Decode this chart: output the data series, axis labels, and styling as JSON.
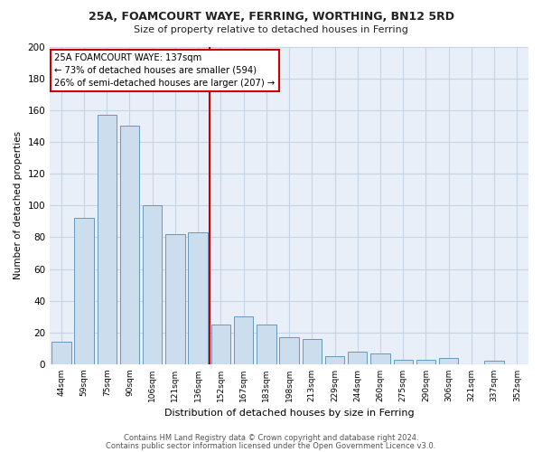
{
  "title1": "25A, FOAMCOURT WAYE, FERRING, WORTHING, BN12 5RD",
  "title2": "Size of property relative to detached houses in Ferring",
  "xlabel": "Distribution of detached houses by size in Ferring",
  "ylabel": "Number of detached properties",
  "categories": [
    "44sqm",
    "59sqm",
    "75sqm",
    "90sqm",
    "106sqm",
    "121sqm",
    "136sqm",
    "152sqm",
    "167sqm",
    "183sqm",
    "198sqm",
    "213sqm",
    "229sqm",
    "244sqm",
    "260sqm",
    "275sqm",
    "290sqm",
    "306sqm",
    "321sqm",
    "337sqm",
    "352sqm"
  ],
  "values": [
    14,
    92,
    157,
    150,
    100,
    82,
    83,
    25,
    30,
    25,
    17,
    16,
    5,
    8,
    7,
    3,
    3,
    4,
    0,
    2,
    0
  ],
  "bar_color": "#ccdded",
  "bar_edge_color": "#6699bb",
  "grid_color": "#c8d4e4",
  "background_color": "#e8eff8",
  "vline_x": 6.5,
  "vline_color": "#cc0000",
  "annotation_line1": "25A FOAMCOURT WAYE: 137sqm",
  "annotation_line2": "← 73% of detached houses are smaller (594)",
  "annotation_line3": "26% of semi-detached houses are larger (207) →",
  "annotation_box_color": "#ffffff",
  "annotation_box_edge": "#cc0000",
  "footer1": "Contains HM Land Registry data © Crown copyright and database right 2024.",
  "footer2": "Contains public sector information licensed under the Open Government Licence v3.0.",
  "ylim": [
    0,
    200
  ],
  "yticks": [
    0,
    20,
    40,
    60,
    80,
    100,
    120,
    140,
    160,
    180,
    200
  ]
}
